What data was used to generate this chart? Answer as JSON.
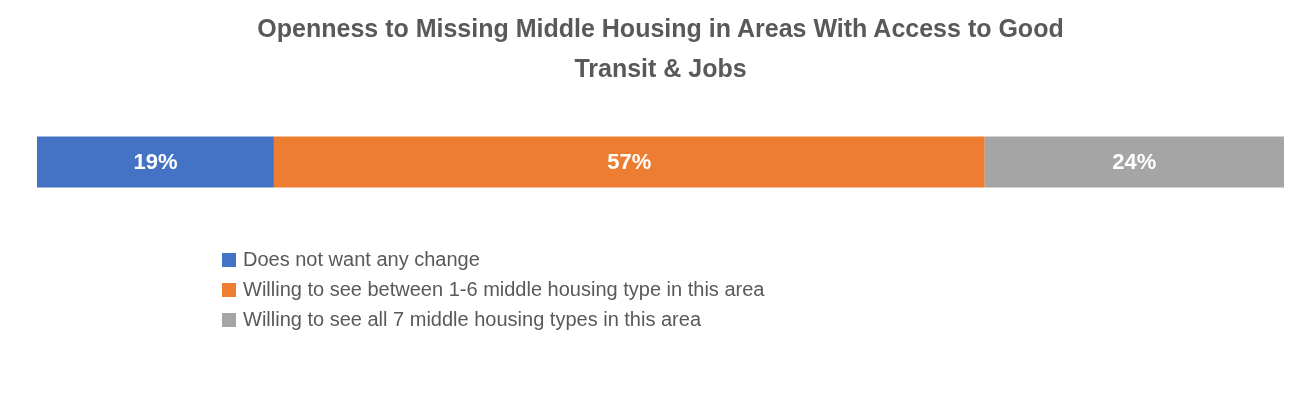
{
  "chart_data": {
    "type": "bar",
    "title": "Openness to Missing Middle Housing in Areas With Access to Good Transit & Jobs",
    "orientation": "horizontal",
    "stacked": true,
    "categories": [
      null
    ],
    "legend": "bottom",
    "series": [
      {
        "name": "Does not want any change",
        "color": "#4472c4",
        "values": [
          19
        ],
        "value_labels": [
          "19%"
        ]
      },
      {
        "name": "Willing to see between 1-6 middle housing type in this area",
        "color": "#ed7d31",
        "values": [
          57
        ],
        "value_labels": [
          "57%"
        ]
      },
      {
        "name": "Willing to see all 7 middle housing types in this area",
        "color": "#a5a5a5",
        "values": [
          24
        ],
        "value_labels": [
          "24%"
        ]
      }
    ]
  }
}
